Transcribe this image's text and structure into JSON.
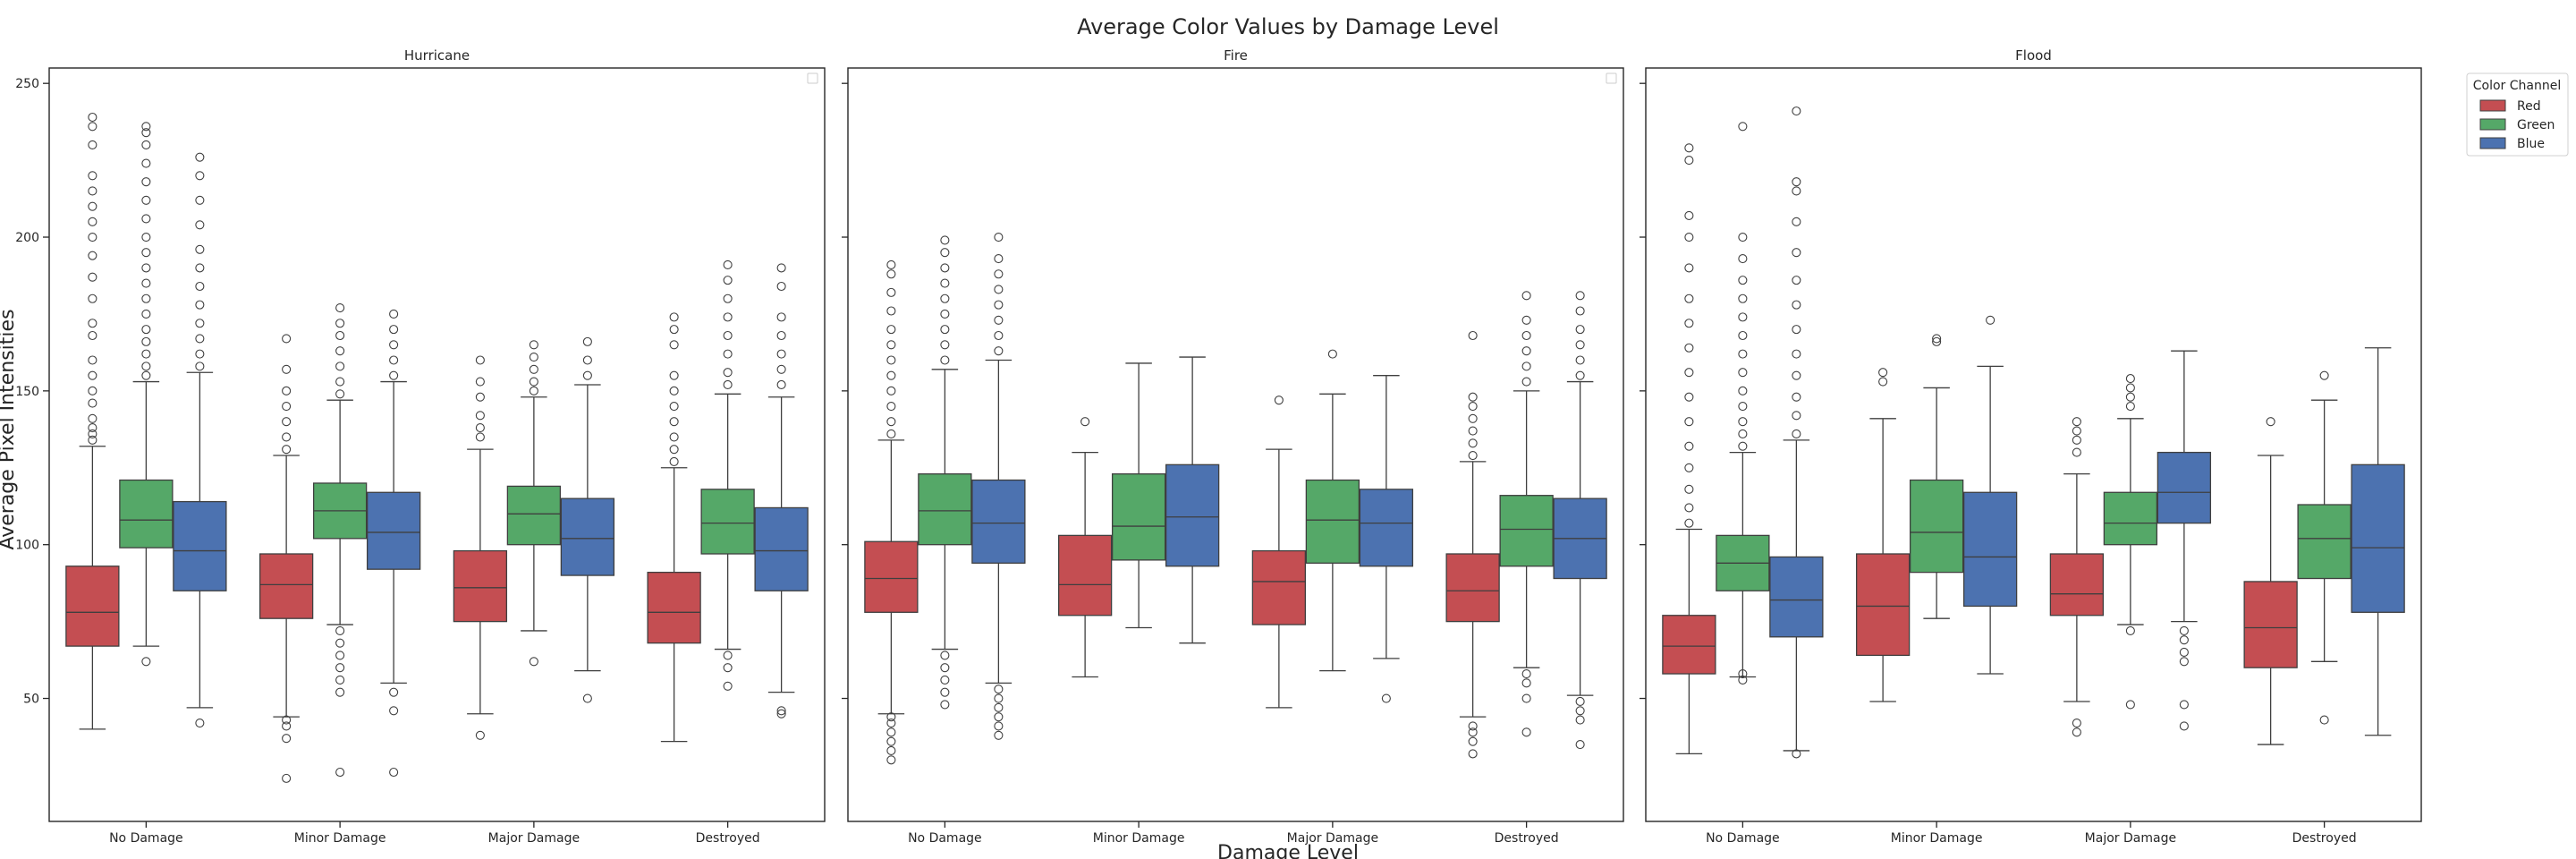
{
  "chart_data": {
    "type": "box",
    "title": "Average Color Values by Damage Level",
    "xlabel": "Damage Level",
    "ylabel": "Average Pixel Intensities",
    "ylim": [
      10,
      255
    ],
    "yticks": [
      50,
      100,
      150,
      200,
      250
    ],
    "grid": false,
    "categories": [
      "No Damage",
      "Minor Damage",
      "Major Damage",
      "Destroyed"
    ],
    "legend": {
      "title": "Color Channel",
      "position": "upper-right outside",
      "entries": [
        {
          "name": "Red",
          "color": "#c44e52"
        },
        {
          "name": "Green",
          "color": "#55a868"
        },
        {
          "name": "Blue",
          "color": "#4c72b0"
        }
      ]
    },
    "panels": [
      {
        "title": "Hurricane",
        "groups": [
          [
            {
              "min": 40,
              "q1": 67,
              "median": 78,
              "q3": 93,
              "max": 132,
              "outliers": [
                134,
                136,
                138,
                141,
                146,
                150,
                155,
                160,
                168,
                172,
                180,
                187,
                194,
                200,
                205,
                210,
                215,
                220,
                230,
                236,
                239
              ]
            },
            {
              "min": 67,
              "q1": 99,
              "median": 108,
              "q3": 121,
              "max": 153,
              "outliers": [
                62,
                155,
                158,
                162,
                166,
                170,
                175,
                180,
                185,
                190,
                195,
                200,
                206,
                212,
                218,
                224,
                230,
                234,
                236
              ]
            },
            {
              "min": 47,
              "q1": 85,
              "median": 98,
              "q3": 114,
              "max": 156,
              "outliers": [
                42,
                158,
                162,
                167,
                172,
                178,
                184,
                190,
                196,
                204,
                212,
                220,
                226
              ]
            }
          ],
          [
            {
              "min": 44,
              "q1": 76,
              "median": 87,
              "q3": 97,
              "max": 129,
              "outliers": [
                24,
                37,
                41,
                43,
                131,
                135,
                140,
                145,
                150,
                157,
                167
              ]
            },
            {
              "min": 74,
              "q1": 102,
              "median": 111,
              "q3": 120,
              "max": 147,
              "outliers": [
                26,
                52,
                56,
                60,
                64,
                68,
                72,
                149,
                153,
                158,
                163,
                168,
                172,
                177
              ]
            },
            {
              "min": 55,
              "q1": 92,
              "median": 104,
              "q3": 117,
              "max": 153,
              "outliers": [
                26,
                46,
                52,
                155,
                160,
                165,
                170,
                175
              ]
            }
          ],
          [
            {
              "min": 45,
              "q1": 75,
              "median": 86,
              "q3": 98,
              "max": 131,
              "outliers": [
                38,
                135,
                138,
                142,
                148,
                153,
                160
              ]
            },
            {
              "min": 72,
              "q1": 100,
              "median": 110,
              "q3": 119,
              "max": 148,
              "outliers": [
                62,
                150,
                153,
                157,
                161,
                165
              ]
            },
            {
              "min": 59,
              "q1": 90,
              "median": 102,
              "q3": 115,
              "max": 152,
              "outliers": [
                50,
                155,
                160,
                166
              ]
            }
          ],
          [
            {
              "min": 36,
              "q1": 68,
              "median": 78,
              "q3": 91,
              "max": 125,
              "outliers": [
                127,
                131,
                135,
                140,
                145,
                150,
                155,
                165,
                170,
                174
              ]
            },
            {
              "min": 66,
              "q1": 97,
              "median": 107,
              "q3": 118,
              "max": 149,
              "outliers": [
                54,
                60,
                64,
                152,
                156,
                162,
                168,
                174,
                180,
                186,
                191
              ]
            },
            {
              "min": 52,
              "q1": 85,
              "median": 98,
              "q3": 112,
              "max": 148,
              "outliers": [
                45,
                46,
                152,
                157,
                162,
                168,
                174,
                184,
                190
              ]
            }
          ]
        ]
      },
      {
        "title": "Fire",
        "groups": [
          [
            {
              "min": 45,
              "q1": 78,
              "median": 89,
              "q3": 101,
              "max": 134,
              "outliers": [
                30,
                33,
                36,
                39,
                42,
                44,
                136,
                140,
                145,
                150,
                155,
                160,
                165,
                170,
                176,
                182,
                188,
                191
              ]
            },
            {
              "min": 66,
              "q1": 100,
              "median": 111,
              "q3": 123,
              "max": 157,
              "outliers": [
                48,
                52,
                56,
                60,
                64,
                160,
                165,
                170,
                175,
                180,
                185,
                190,
                195,
                199
              ]
            },
            {
              "min": 55,
              "q1": 94,
              "median": 107,
              "q3": 121,
              "max": 160,
              "outliers": [
                38,
                41,
                44,
                47,
                50,
                53,
                163,
                168,
                173,
                178,
                183,
                188,
                193,
                200
              ]
            }
          ],
          [
            {
              "min": 57,
              "q1": 77,
              "median": 87,
              "q3": 103,
              "max": 130,
              "outliers": [
                140
              ]
            },
            {
              "min": 73,
              "q1": 95,
              "median": 106,
              "q3": 123,
              "max": 159,
              "outliers": []
            },
            {
              "min": 68,
              "q1": 93,
              "median": 109,
              "q3": 126,
              "max": 161,
              "outliers": []
            }
          ],
          [
            {
              "min": 47,
              "q1": 74,
              "median": 88,
              "q3": 98,
              "max": 131,
              "outliers": [
                147
              ]
            },
            {
              "min": 59,
              "q1": 94,
              "median": 108,
              "q3": 121,
              "max": 149,
              "outliers": [
                162
              ]
            },
            {
              "min": 63,
              "q1": 93,
              "median": 107,
              "q3": 118,
              "max": 155,
              "outliers": [
                50
              ]
            }
          ],
          [
            {
              "min": 44,
              "q1": 75,
              "median": 85,
              "q3": 97,
              "max": 127,
              "outliers": [
                32,
                36,
                39,
                41,
                129,
                133,
                137,
                141,
                145,
                148,
                168
              ]
            },
            {
              "min": 60,
              "q1": 93,
              "median": 105,
              "q3": 116,
              "max": 150,
              "outliers": [
                39,
                50,
                55,
                58,
                153,
                158,
                163,
                168,
                173,
                181
              ]
            },
            {
              "min": 51,
              "q1": 89,
              "median": 102,
              "q3": 115,
              "max": 153,
              "outliers": [
                35,
                43,
                46,
                49,
                155,
                160,
                165,
                170,
                176,
                181
              ]
            }
          ]
        ]
      },
      {
        "title": "Flood",
        "groups": [
          [
            {
              "min": 32,
              "q1": 58,
              "median": 67,
              "q3": 77,
              "max": 105,
              "outliers": [
                107,
                112,
                118,
                125,
                132,
                140,
                148,
                156,
                164,
                172,
                180,
                190,
                200,
                207,
                225,
                229
              ]
            },
            {
              "min": 57,
              "q1": 85,
              "median": 94,
              "q3": 103,
              "max": 130,
              "outliers": [
                56,
                58,
                132,
                136,
                140,
                145,
                150,
                156,
                162,
                168,
                174,
                180,
                186,
                193,
                200,
                236
              ]
            },
            {
              "min": 33,
              "q1": 70,
              "median": 82,
              "q3": 96,
              "max": 134,
              "outliers": [
                32,
                136,
                142,
                148,
                155,
                162,
                170,
                178,
                186,
                195,
                205,
                215,
                218,
                241
              ]
            }
          ],
          [
            {
              "min": 49,
              "q1": 64,
              "median": 80,
              "q3": 97,
              "max": 141,
              "outliers": [
                153,
                156
              ]
            },
            {
              "min": 76,
              "q1": 91,
              "median": 104,
              "q3": 121,
              "max": 151,
              "outliers": [
                166,
                167
              ]
            },
            {
              "min": 58,
              "q1": 80,
              "median": 96,
              "q3": 117,
              "max": 158,
              "outliers": [
                173
              ]
            }
          ],
          [
            {
              "min": 49,
              "q1": 77,
              "median": 84,
              "q3": 97,
              "max": 123,
              "outliers": [
                39,
                42,
                130,
                134,
                137,
                140
              ]
            },
            {
              "min": 74,
              "q1": 100,
              "median": 107,
              "q3": 117,
              "max": 141,
              "outliers": [
                48,
                72,
                145,
                148,
                151,
                154
              ]
            },
            {
              "min": 75,
              "q1": 107,
              "median": 117,
              "q3": 130,
              "max": 163,
              "outliers": [
                41,
                48,
                62,
                65,
                69,
                72
              ]
            }
          ],
          [
            {
              "min": 35,
              "q1": 60,
              "median": 73,
              "q3": 88,
              "max": 129,
              "outliers": [
                140
              ]
            },
            {
              "min": 62,
              "q1": 89,
              "median": 102,
              "q3": 113,
              "max": 147,
              "outliers": [
                43,
                155
              ]
            },
            {
              "min": 38,
              "q1": 78,
              "median": 99,
              "q3": 126,
              "max": 164,
              "outliers": []
            }
          ]
        ]
      }
    ]
  }
}
